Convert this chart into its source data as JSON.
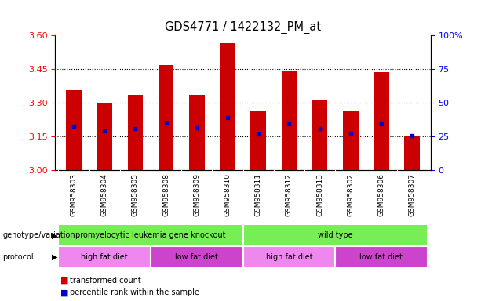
{
  "title": "GDS4771 / 1422132_PM_at",
  "samples": [
    "GSM958303",
    "GSM958304",
    "GSM958305",
    "GSM958308",
    "GSM958309",
    "GSM958310",
    "GSM958311",
    "GSM958312",
    "GSM958313",
    "GSM958302",
    "GSM958306",
    "GSM958307"
  ],
  "bar_tops": [
    3.355,
    3.295,
    3.335,
    3.465,
    3.335,
    3.565,
    3.265,
    3.44,
    3.31,
    3.265,
    3.435,
    3.15
  ],
  "bar_base": 3.0,
  "blue_dot_y": [
    3.195,
    3.175,
    3.185,
    3.21,
    3.19,
    3.235,
    3.16,
    3.205,
    3.185,
    3.165,
    3.205,
    3.155
  ],
  "ylim": [
    3.0,
    3.6
  ],
  "yticks_left": [
    3.0,
    3.15,
    3.3,
    3.45,
    3.6
  ],
  "yticks_right": [
    0,
    25,
    50,
    75,
    100
  ],
  "bar_color": "#cc0000",
  "dot_color": "#0000cc",
  "genotype_labels": [
    "promyelocytic leukemia gene knockout",
    "wild type"
  ],
  "genotype_starts": [
    0,
    6
  ],
  "genotype_ends": [
    6,
    12
  ],
  "genotype_color": "#77ee55",
  "protocol_labels": [
    "high fat diet",
    "low fat diet",
    "high fat diet",
    "low fat diet"
  ],
  "protocol_starts": [
    0,
    3,
    6,
    9
  ],
  "protocol_ends": [
    3,
    6,
    9,
    12
  ],
  "protocol_colors": [
    "#ee88ee",
    "#cc44cc",
    "#ee88ee",
    "#cc44cc"
  ],
  "legend_items": [
    {
      "label": "transformed count",
      "color": "#cc0000"
    },
    {
      "label": "percentile rank within the sample",
      "color": "#0000cc"
    }
  ],
  "bar_width": 0.5,
  "row_label_geno": "genotype/variation",
  "row_label_proto": "protocol",
  "xtick_bg_color": "#dddddd"
}
